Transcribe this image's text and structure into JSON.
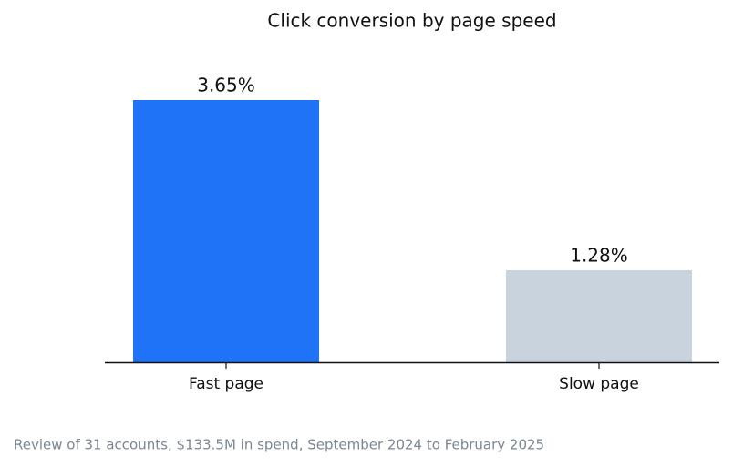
{
  "chart_data": {
    "type": "bar",
    "title": "Click conversion by page speed",
    "categories": [
      "Fast page",
      "Slow page"
    ],
    "values": [
      3.65,
      1.28
    ],
    "value_labels": [
      "3.65%",
      "1.28%"
    ],
    "colors": [
      "#1f73f7",
      "#c8d3de"
    ],
    "caption": "Review of 31 accounts, $133.5M in spend, September 2024 to February 2025"
  }
}
